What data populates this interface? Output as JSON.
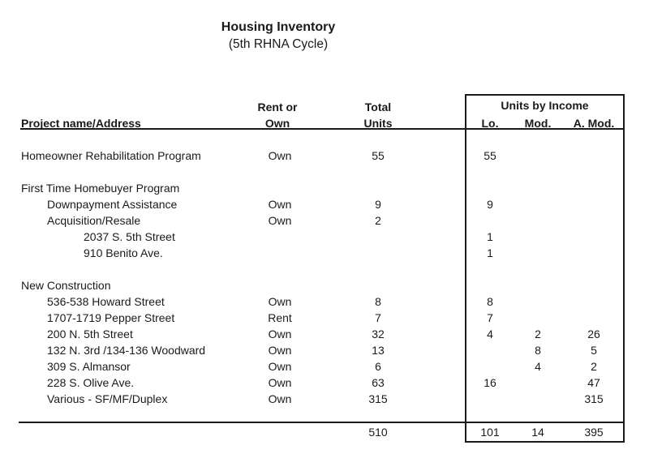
{
  "page": {
    "title": "Housing Inventory",
    "subtitle": "(5th RHNA Cycle)"
  },
  "colors": {
    "text": "#1a1a1a",
    "line": "#1a1a1a",
    "background": "#ffffff"
  },
  "table": {
    "headers": {
      "project": "Project name/Address",
      "tenure_top": "Rent or",
      "tenure_bottom": "Own",
      "total_top": "Total",
      "total_bottom": "Units",
      "income_group": "Units by Income",
      "lo": "Lo.",
      "mod": "Mod.",
      "a_mod": "A. Mod."
    },
    "rows": [
      {
        "name": "Homeowner Rehabilitation Program",
        "indent": 0,
        "tenure": "Own",
        "total": "55",
        "lo": "55",
        "mod": "",
        "a_mod": ""
      },
      {
        "name": "",
        "indent": 0,
        "tenure": "",
        "total": "",
        "lo": "",
        "mod": "",
        "a_mod": ""
      },
      {
        "name": "First Time Homebuyer Program",
        "indent": 0,
        "tenure": "",
        "total": "",
        "lo": "",
        "mod": "",
        "a_mod": ""
      },
      {
        "name": "Downpayment Assistance",
        "indent": 1,
        "tenure": "Own",
        "total": "9",
        "lo": "9",
        "mod": "",
        "a_mod": ""
      },
      {
        "name": "Acquisition/Resale",
        "indent": 1,
        "tenure": "Own",
        "total": "2",
        "lo": "",
        "mod": "",
        "a_mod": ""
      },
      {
        "name": "2037 S. 5th Street",
        "indent": 2,
        "tenure": "",
        "total": "",
        "lo": "1",
        "mod": "",
        "a_mod": ""
      },
      {
        "name": "910 Benito Ave.",
        "indent": 2,
        "tenure": "",
        "total": "",
        "lo": "1",
        "mod": "",
        "a_mod": ""
      },
      {
        "name": "",
        "indent": 0,
        "tenure": "",
        "total": "",
        "lo": "",
        "mod": "",
        "a_mod": ""
      },
      {
        "name": "New Construction",
        "indent": 0,
        "tenure": "",
        "total": "",
        "lo": "",
        "mod": "",
        "a_mod": ""
      },
      {
        "name": "536-538 Howard Street",
        "indent": 1,
        "tenure": "Own",
        "total": "8",
        "lo": "8",
        "mod": "",
        "a_mod": ""
      },
      {
        "name": "1707-1719 Pepper Street",
        "indent": 1,
        "tenure": "Rent",
        "total": "7",
        "lo": "7",
        "mod": "",
        "a_mod": ""
      },
      {
        "name": "200 N. 5th Street",
        "indent": 1,
        "tenure": "Own",
        "total": "32",
        "lo": "4",
        "mod": "2",
        "a_mod": "26"
      },
      {
        "name": "132 N. 3rd /134-136 Woodward",
        "indent": 1,
        "tenure": "Own",
        "total": "13",
        "lo": "",
        "mod": "8",
        "a_mod": "5"
      },
      {
        "name": "309 S. Almansor",
        "indent": 1,
        "tenure": "Own",
        "total": "6",
        "lo": "",
        "mod": "4",
        "a_mod": "2"
      },
      {
        "name": "228 S. Olive Ave.",
        "indent": 1,
        "tenure": "Own",
        "total": "63",
        "lo": "16",
        "mod": "",
        "a_mod": "47"
      },
      {
        "name": "Various - SF/MF/Duplex",
        "indent": 1,
        "tenure": "Own",
        "total": "315",
        "lo": "",
        "mod": "",
        "a_mod": "315"
      }
    ],
    "totals": {
      "total": "510",
      "lo": "101",
      "mod": "14",
      "a_mod": "395"
    }
  }
}
